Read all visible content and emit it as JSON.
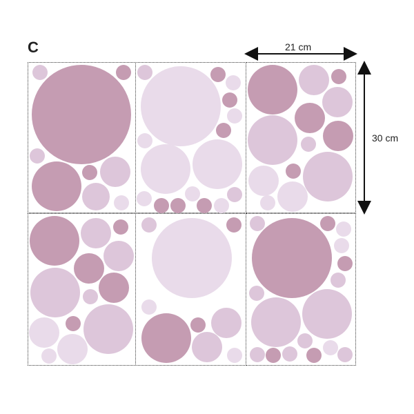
{
  "set_label": "C",
  "dimensions": {
    "width_label": "21 cm",
    "height_label": "30 cm"
  },
  "colors": {
    "mauve": "#c59cb2",
    "light_lilac": "#ddc6da",
    "pale_lilac": "#e9dbea",
    "outline": "#333333"
  },
  "sheet_count": 6
}
